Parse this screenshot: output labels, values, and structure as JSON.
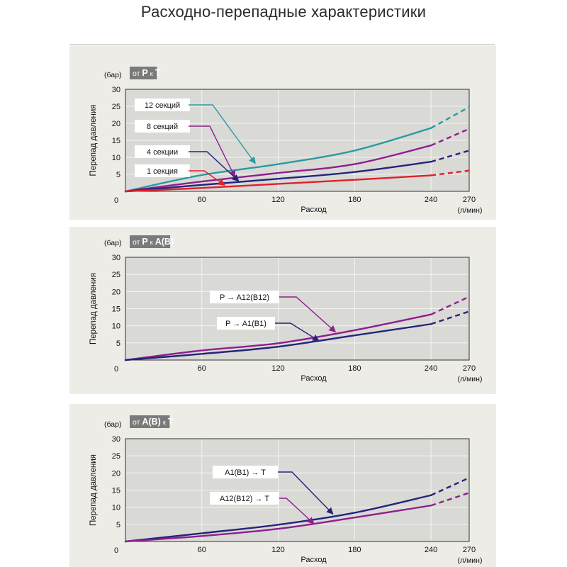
{
  "title": "Расходно-перепадные характеристики",
  "colors": {
    "teal": "#2a9aa0",
    "purple": "#8e1f8e",
    "navy": "#25247a",
    "red": "#e0202a"
  },
  "chart_data": [
    {
      "type": "line",
      "badge": {
        "prefix": "от",
        "from": "P",
        "mid": "к",
        "to": "T"
      },
      "ylabel": "Перепад давления",
      "yunit": "(бар)",
      "xlabel": "Расход",
      "xunit": "(л/мин)",
      "xlim": [
        0,
        270
      ],
      "ylim": [
        0,
        30
      ],
      "x_ticks": [
        0,
        60,
        120,
        180,
        240,
        270
      ],
      "y_ticks": [
        5,
        10,
        15,
        20,
        25,
        30
      ],
      "zero_label": "0",
      "grid": true,
      "dashed_from_x": 240,
      "series": [
        {
          "name": "12 секций",
          "color": "#2a9aa0",
          "x": [
            0,
            60,
            120,
            180,
            240,
            270
          ],
          "y": [
            0,
            4.8,
            8,
            12,
            18.6,
            24.8
          ],
          "label_at": [
            102,
            8.2
          ]
        },
        {
          "name": "8 секций",
          "color": "#8e1f8e",
          "x": [
            0,
            60,
            120,
            180,
            240,
            270
          ],
          "y": [
            0,
            2.9,
            5.4,
            8,
            13.5,
            18.4
          ],
          "label_at": [
            86,
            4.2
          ]
        },
        {
          "name": "4 секции",
          "color": "#25247a",
          "x": [
            0,
            60,
            120,
            180,
            240,
            270
          ],
          "y": [
            0,
            1.9,
            3.7,
            5.7,
            8.7,
            12
          ],
          "label_at": [
            89,
            3.0
          ]
        },
        {
          "name": "1 секция",
          "color": "#e0202a",
          "x": [
            0,
            60,
            120,
            180,
            240,
            270
          ],
          "y": [
            0,
            1.0,
            2.2,
            3.4,
            4.7,
            6.1
          ],
          "label_at": [
            78,
            1.8
          ]
        }
      ]
    },
    {
      "type": "line",
      "badge": {
        "prefix": "от",
        "from": "P",
        "mid": "к",
        "to": "A(B)"
      },
      "ylabel": "Перепад давления",
      "yunit": "(бар)",
      "xlabel": "Расход",
      "xunit": "(л/мин)",
      "xlim": [
        0,
        270
      ],
      "ylim": [
        0,
        30
      ],
      "x_ticks": [
        0,
        60,
        120,
        180,
        240,
        270
      ],
      "y_ticks": [
        5,
        10,
        15,
        20,
        25,
        30
      ],
      "zero_label": "0",
      "grid": true,
      "dashed_from_x": 240,
      "series": [
        {
          "name": "P → A12(B12)",
          "color": "#8e1f8e",
          "x": [
            0,
            60,
            120,
            180,
            240,
            270
          ],
          "y": [
            0,
            2.8,
            4.9,
            8.7,
            13.3,
            18.5
          ],
          "label_at": [
            165,
            8.2
          ]
        },
        {
          "name": "P → A1(B1)",
          "color": "#25247a",
          "x": [
            0,
            60,
            120,
            180,
            240,
            270
          ],
          "y": [
            0,
            1.8,
            3.9,
            7.2,
            10.5,
            14.2
          ],
          "label_at": [
            152,
            5.6
          ]
        }
      ]
    },
    {
      "type": "line",
      "badge": {
        "prefix": "от",
        "from": "A(B)",
        "mid": "к",
        "to": "T"
      },
      "ylabel": "Перепад давления",
      "yunit": "(бар)",
      "xlabel": "Расход",
      "xunit": "(л/мин)",
      "xlim": [
        0,
        270
      ],
      "ylim": [
        0,
        30
      ],
      "x_ticks": [
        0,
        60,
        120,
        180,
        240,
        270
      ],
      "y_ticks": [
        5,
        10,
        15,
        20,
        25,
        30
      ],
      "zero_label": "0",
      "grid": true,
      "dashed_from_x": 240,
      "series": [
        {
          "name": "A1(B1) → T",
          "color": "#25247a",
          "x": [
            0,
            60,
            120,
            180,
            240,
            270
          ],
          "y": [
            0,
            2.4,
            4.9,
            8.4,
            13.5,
            18.6
          ],
          "label_at": [
            163,
            8.0
          ]
        },
        {
          "name": "A12(B12) → T",
          "color": "#8e1f8e",
          "x": [
            0,
            60,
            120,
            180,
            240,
            270
          ],
          "y": [
            0,
            1.6,
            3.7,
            7.0,
            10.5,
            14.2
          ],
          "label_at": [
            148,
            5.2
          ]
        }
      ]
    }
  ]
}
